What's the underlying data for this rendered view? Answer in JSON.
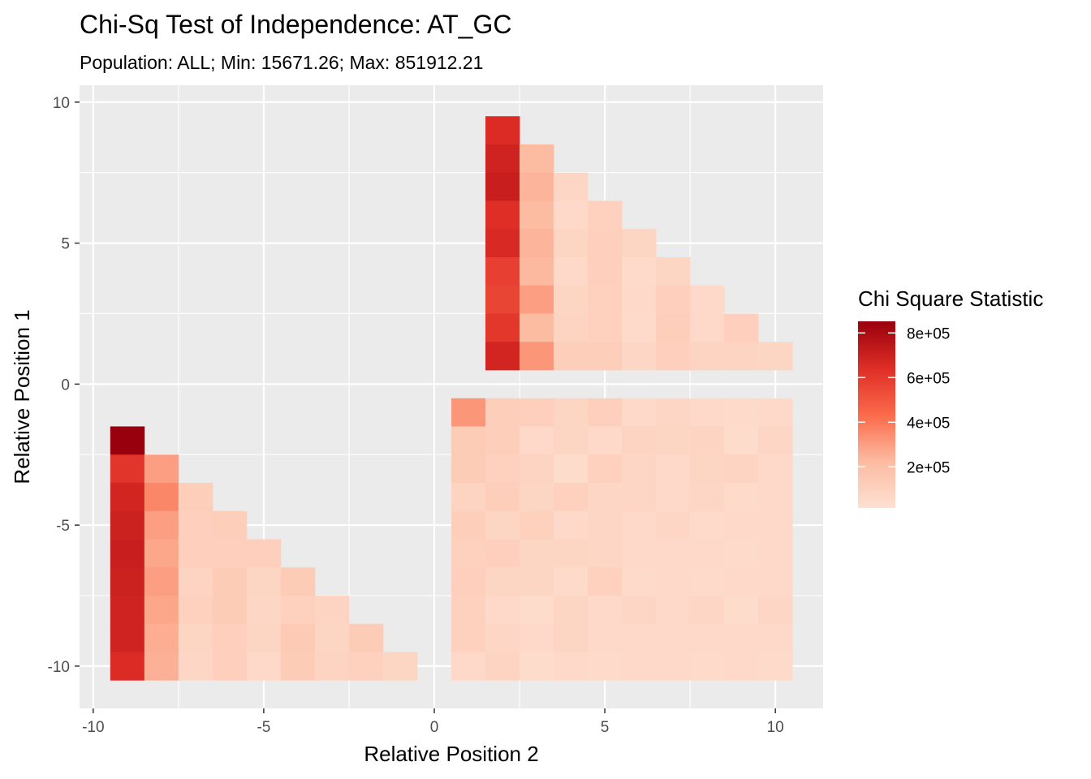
{
  "chart_data": {
    "type": "heatmap",
    "title": "Chi-Sq Test of Independence: AT_GC",
    "subtitle": "Population: ALL; Min: 15671.26; Max: 851912.21",
    "xlabel": "Relative Position 2",
    "ylabel": "Relative Position 1",
    "xlim": [
      -10.4,
      11.4
    ],
    "ylim": [
      -11.5,
      10.6
    ],
    "x_ticks": [
      -10,
      -5,
      0,
      5,
      10
    ],
    "x_tick_labels": [
      "-10",
      "-5",
      "0",
      "5",
      "10"
    ],
    "y_ticks": [
      -10,
      -5,
      0,
      5,
      10
    ],
    "y_tick_labels": [
      "-10",
      "-5",
      "0",
      "5",
      "10"
    ],
    "grid": true,
    "legend": {
      "title": "Chi Square Statistic",
      "position": "right",
      "min": 15671.26,
      "max": 851912.21,
      "breaks": [
        200000,
        400000,
        600000,
        800000
      ],
      "labels": [
        "2e+05",
        "4e+05",
        "6e+05",
        "8e+05"
      ],
      "low_color": "#fee0d2",
      "high_color": "#99000d"
    },
    "regions": [
      {
        "name": "lower-triangle",
        "x_start": -9,
        "y_values": [
          -2,
          -3,
          -4,
          -5,
          -6,
          -7,
          -8,
          -9,
          -10
        ],
        "rows": [
          [
            851912
          ],
          [
            620000,
            300000
          ],
          [
            680000,
            360000,
            120000
          ],
          [
            700000,
            300000,
            110000,
            120000
          ],
          [
            710000,
            280000,
            110000,
            110000,
            110000
          ],
          [
            700000,
            300000,
            90000,
            130000,
            80000,
            130000
          ],
          [
            690000,
            280000,
            100000,
            130000,
            70000,
            100000,
            90000
          ],
          [
            690000,
            260000,
            80000,
            110000,
            80000,
            140000,
            80000,
            130000
          ],
          [
            650000,
            250000,
            70000,
            110000,
            60000,
            130000,
            90000,
            100000,
            80000
          ]
        ]
      },
      {
        "name": "upper-triangle",
        "x_start": 2,
        "y_values": [
          9,
          8,
          7,
          6,
          5,
          4,
          3,
          2,
          1
        ],
        "rows": [
          [
            650000
          ],
          [
            690000,
            220000
          ],
          [
            710000,
            240000,
            70000
          ],
          [
            640000,
            220000,
            60000,
            100000
          ],
          [
            660000,
            240000,
            80000,
            110000,
            80000
          ],
          [
            580000,
            230000,
            60000,
            110000,
            50000,
            80000
          ],
          [
            560000,
            300000,
            80000,
            100000,
            60000,
            110000,
            60000
          ],
          [
            610000,
            220000,
            90000,
            100000,
            50000,
            120000,
            60000,
            110000
          ],
          [
            680000,
            320000,
            120000,
            120000,
            70000,
            110000,
            90000,
            90000,
            80000
          ]
        ]
      },
      {
        "name": "lower-right-block",
        "x_start": 1,
        "y_values": [
          -1,
          -2,
          -3,
          -4,
          -5,
          -6,
          -7,
          -8,
          -9,
          -10
        ],
        "rows": [
          [
            320000,
            120000,
            110000,
            80000,
            110000,
            60000,
            70000,
            60000,
            50000,
            60000
          ],
          [
            130000,
            120000,
            60000,
            80000,
            60000,
            90000,
            80000,
            90000,
            40000,
            70000
          ],
          [
            130000,
            100000,
            90000,
            40000,
            100000,
            70000,
            60000,
            80000,
            90000,
            60000
          ],
          [
            90000,
            120000,
            80000,
            100000,
            70000,
            70000,
            60000,
            70000,
            50000,
            60000
          ],
          [
            120000,
            80000,
            100000,
            60000,
            70000,
            60000,
            70000,
            50000,
            60000,
            60000
          ],
          [
            100000,
            110000,
            80000,
            80000,
            70000,
            60000,
            60000,
            60000,
            50000,
            60000
          ],
          [
            110000,
            80000,
            80000,
            50000,
            100000,
            50000,
            60000,
            50000,
            60000,
            60000
          ],
          [
            100000,
            60000,
            40000,
            80000,
            60000,
            70000,
            60000,
            70000,
            40000,
            70000
          ],
          [
            100000,
            70000,
            60000,
            80000,
            60000,
            60000,
            60000,
            60000,
            60000,
            60000
          ],
          [
            60000,
            90000,
            40000,
            60000,
            50000,
            60000,
            60000,
            50000,
            60000,
            50000
          ]
        ]
      }
    ]
  }
}
